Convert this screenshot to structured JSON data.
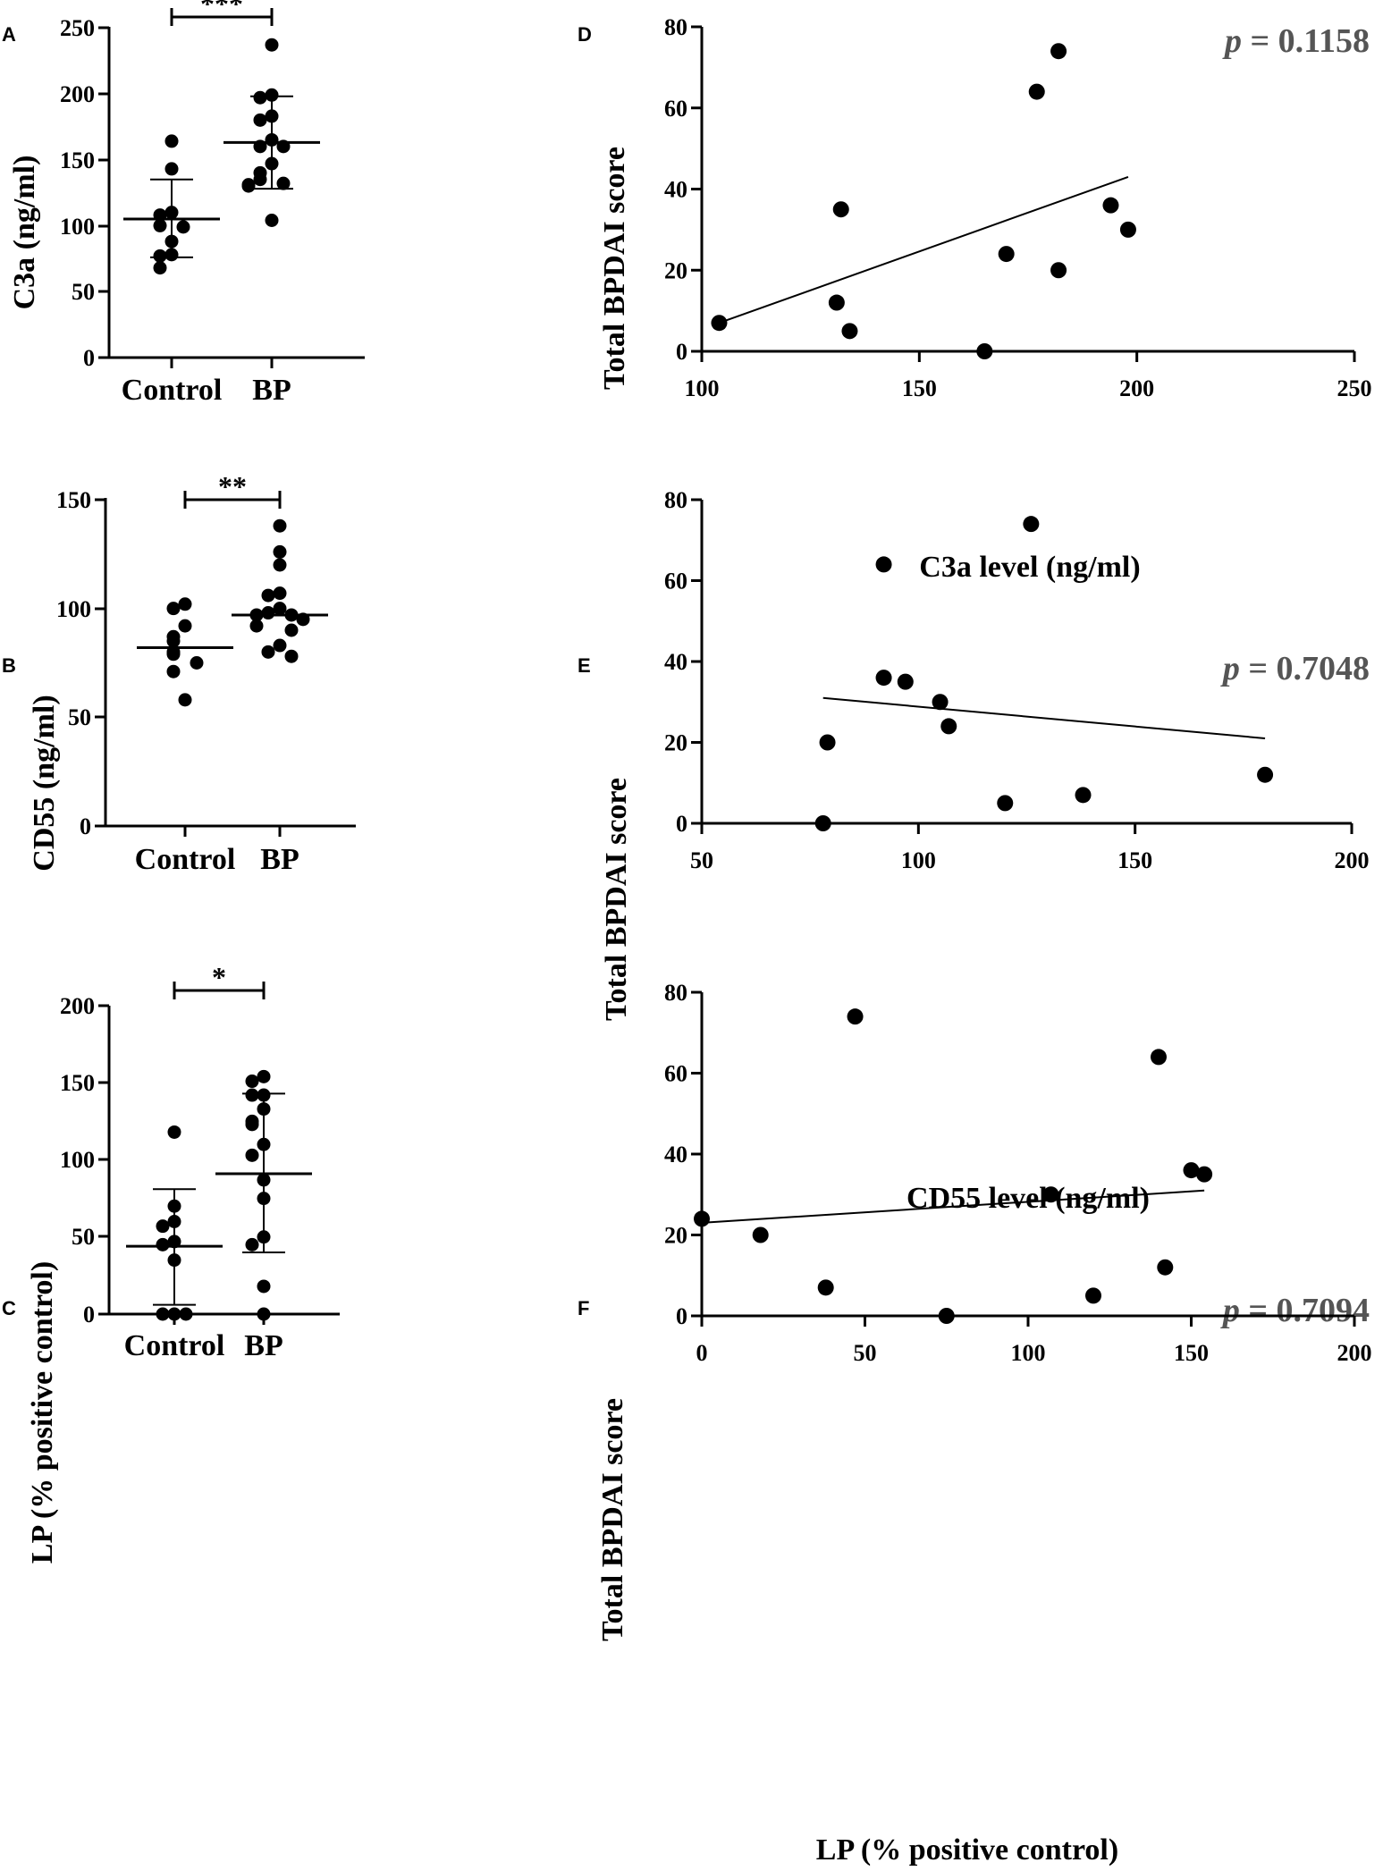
{
  "chart_data": [
    {
      "panel": "A",
      "type": "scatter",
      "categories": [
        "Control",
        "BP"
      ],
      "ylabel": "C3a (ng/ml)",
      "ylim": [
        0,
        250
      ],
      "yticks": [
        "0",
        "50",
        "100",
        "150",
        "200",
        "250"
      ],
      "significance": "***",
      "series": [
        {
          "name": "Control",
          "values": [
            164,
            143,
            110,
            108,
            100,
            99,
            88,
            78,
            77,
            68
          ],
          "mean": 105,
          "sd_low": 76,
          "sd_high": 135
        },
        {
          "name": "BP",
          "values": [
            237,
            199,
            197,
            183,
            180,
            165,
            160,
            160,
            147,
            140,
            135,
            132,
            131,
            130,
            104
          ],
          "mean": 163,
          "sd_low": 128,
          "sd_high": 198
        }
      ]
    },
    {
      "panel": "B",
      "type": "scatter",
      "categories": [
        "Control",
        "BP"
      ],
      "ylabel": "CD55 (ng/ml)",
      "ylim": [
        0,
        150
      ],
      "yticks": [
        "0",
        "50",
        "100",
        "150"
      ],
      "significance": "**",
      "series": [
        {
          "name": "Control",
          "values": [
            102,
            100,
            92,
            87,
            85,
            80,
            79,
            75,
            71,
            58
          ],
          "mean": 82
        },
        {
          "name": "BP",
          "values": [
            138,
            126,
            120,
            107,
            106,
            100,
            98,
            97,
            97,
            95,
            92,
            90,
            83,
            80,
            78
          ],
          "mean": 97
        }
      ]
    },
    {
      "panel": "C",
      "type": "scatter",
      "categories": [
        "Control",
        "BP"
      ],
      "ylabel": "LP (% positive control)",
      "ylim": [
        0,
        200
      ],
      "yticks": [
        "0",
        "50",
        "100",
        "150",
        "200"
      ],
      "significance": "*",
      "series": [
        {
          "name": "Control",
          "values": [
            118,
            70,
            60,
            57,
            47,
            45,
            35,
            0,
            0,
            0
          ],
          "mean": 44,
          "sd_low": 6,
          "sd_high": 81
        },
        {
          "name": "BP",
          "values": [
            154,
            151,
            142,
            142,
            133,
            125,
            123,
            110,
            103,
            87,
            75,
            50,
            45,
            18,
            0
          ],
          "mean": 91,
          "sd_low": 40,
          "sd_high": 143
        }
      ]
    },
    {
      "panel": "D",
      "type": "scatter",
      "xlabel": "C3a level (ng/ml)",
      "ylabel": "Total BPDAI score",
      "xlim": [
        100,
        250
      ],
      "ylim": [
        0,
        80
      ],
      "xticks": [
        "100",
        "150",
        "200",
        "250"
      ],
      "yticks": [
        "0",
        "20",
        "40",
        "60",
        "80"
      ],
      "p_symbol": "p",
      "p_text": "= 0.1158",
      "points": [
        [
          104,
          7
        ],
        [
          131,
          12
        ],
        [
          132,
          35
        ],
        [
          134,
          5
        ],
        [
          165,
          0
        ],
        [
          170,
          24
        ],
        [
          177,
          64
        ],
        [
          182,
          74
        ],
        [
          182,
          20
        ],
        [
          194,
          36
        ],
        [
          198,
          30
        ]
      ],
      "fit": {
        "x": [
          104,
          198
        ],
        "y": [
          7,
          43
        ]
      }
    },
    {
      "panel": "E",
      "type": "scatter",
      "xlabel": "CD55 level (ng/ml)",
      "ylabel": "Total BPDAI score",
      "xlim": [
        50,
        200
      ],
      "ylim": [
        0,
        80
      ],
      "xticks": [
        "50",
        "100",
        "150",
        "200"
      ],
      "yticks": [
        "0",
        "20",
        "40",
        "60",
        "80"
      ],
      "p_symbol": "p",
      "p_text": "= 0.7048",
      "points": [
        [
          78,
          0
        ],
        [
          79,
          20
        ],
        [
          92,
          36
        ],
        [
          92,
          64
        ],
        [
          97,
          35
        ],
        [
          105,
          30
        ],
        [
          107,
          24
        ],
        [
          120,
          5
        ],
        [
          126,
          74
        ],
        [
          138,
          7
        ],
        [
          180,
          12
        ]
      ],
      "fit": {
        "x": [
          78,
          180
        ],
        "y": [
          31,
          21
        ]
      }
    },
    {
      "panel": "F",
      "type": "scatter",
      "xlabel": "LP (% positive control)",
      "ylabel": "Total BPDAI score",
      "xlim": [
        0,
        200
      ],
      "ylim": [
        0,
        80
      ],
      "xticks": [
        "0",
        "50",
        "100",
        "150",
        "200"
      ],
      "yticks": [
        "0",
        "20",
        "40",
        "60",
        "80"
      ],
      "p_symbol": "p",
      "p_text": "= 0.7094",
      "points": [
        [
          0,
          24
        ],
        [
          18,
          20
        ],
        [
          38,
          7
        ],
        [
          47,
          74
        ],
        [
          75,
          0
        ],
        [
          107,
          30
        ],
        [
          120,
          5
        ],
        [
          140,
          64
        ],
        [
          142,
          12
        ],
        [
          150,
          36
        ],
        [
          154,
          35
        ]
      ],
      "fit": {
        "x": [
          0,
          154
        ],
        "y": [
          23,
          31
        ]
      }
    }
  ]
}
